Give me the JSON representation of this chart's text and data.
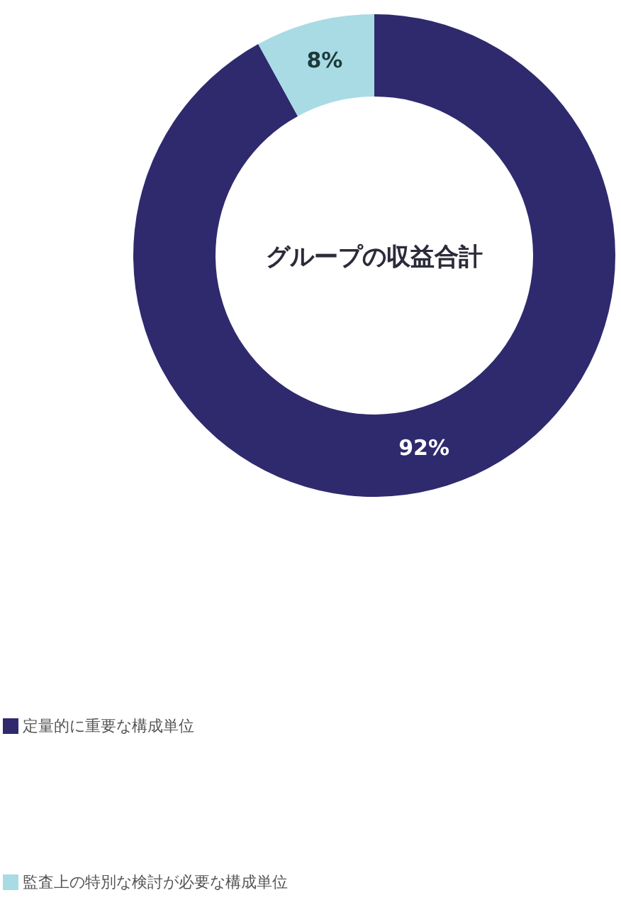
{
  "chart_data": {
    "type": "donut",
    "title": "グループの収益合計",
    "categories": [
      "定量的に重要な構成単位",
      "監査上の特別な検討が必要な構成単位"
    ],
    "values": [
      92,
      8
    ],
    "colors": [
      "#2f2a6e",
      "#a9dbe5"
    ],
    "value_labels": [
      "92%",
      "8%"
    ],
    "legend": "bottom"
  }
}
